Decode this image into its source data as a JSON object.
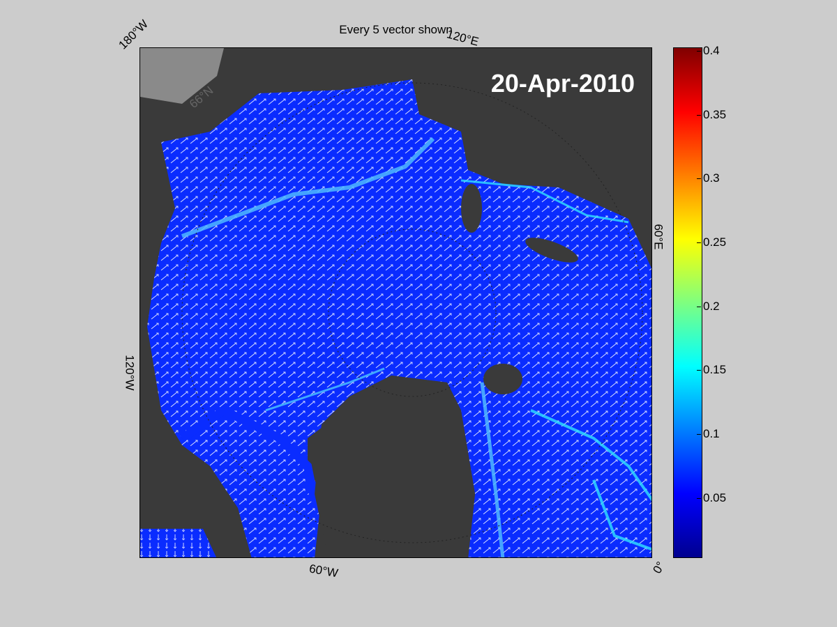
{
  "figure": {
    "title": "Every 5 vector shown",
    "date_label": "20-Apr-2010"
  },
  "map_labels": {
    "lon_180w": "180°W",
    "lon_120e": "120°E",
    "lon_60e": "60°E",
    "lon_120w": "120°W",
    "lon_60w": "60°W",
    "lon_0": "0°",
    "lat_66n": "66°N"
  },
  "colorbar": {
    "ticks": [
      "0.4",
      "0.35",
      "0.3",
      "0.25",
      "0.2",
      "0.15",
      "0.1",
      "0.05"
    ],
    "colormap": "jet",
    "range": [
      0,
      0.4
    ]
  },
  "colors": {
    "background": "#cccccc",
    "ocean": "#0a2cff",
    "land": "#3a3a3a",
    "land_light": "#8a8a8a",
    "vectors": "#ffffff"
  }
}
